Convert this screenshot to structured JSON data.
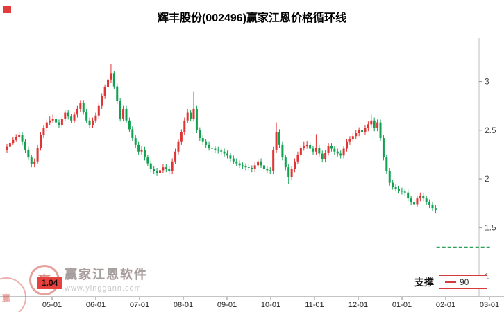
{
  "colors": {
    "up": "#e03434",
    "down": "#12a150",
    "accent_red": "#e23b3b",
    "axis": "#8a8a8a",
    "support_line": "#2aa05a"
  },
  "watermark": {
    "brand": "赢家江恩软件",
    "url": "www.yinggann.com",
    "logo_char": "赢",
    "stamp_char": "赢"
  },
  "chart_data": {
    "type": "candlestick",
    "title": "辉丰股份(002496)赢家江恩价格循环线",
    "symbol": "002496",
    "stock_name": "辉丰股份",
    "x_tick_labels": [
      "05-01",
      "06-01",
      "07-01",
      "08-01",
      "09-01",
      "10-01",
      "11-01",
      "12-01",
      "01-01",
      "02-01",
      "03-01"
    ],
    "y_tick_labels": [
      "3",
      "2.5",
      "2",
      "1.5",
      "1"
    ],
    "y_tick_values": [
      3,
      2.5,
      2,
      1.5,
      1
    ],
    "ylim": [
      0.79,
      3.41
    ],
    "grid": false,
    "legend_position": "bottom-right",
    "up_color": "#e03434",
    "down_color": "#12a150",
    "support_level_label": "1.04",
    "legend": {
      "label": "支撑",
      "value": "90",
      "color": "#d43c3c"
    },
    "support_dash_line": {
      "price": 1.3,
      "x_start_frac": 0.866,
      "x_end_frac": 0.975,
      "color": "#2aa05a",
      "style": "dashed"
    },
    "candles_ohlc": [
      [
        2.3,
        2.36,
        2.27,
        2.33
      ],
      [
        2.33,
        2.4,
        2.31,
        2.37
      ],
      [
        2.37,
        2.43,
        2.35,
        2.4
      ],
      [
        2.4,
        2.46,
        2.38,
        2.43
      ],
      [
        2.43,
        2.49,
        2.41,
        2.45
      ],
      [
        2.45,
        2.48,
        2.35,
        2.38
      ],
      [
        2.38,
        2.41,
        2.27,
        2.3
      ],
      [
        2.3,
        2.33,
        2.19,
        2.22
      ],
      [
        2.22,
        2.25,
        2.12,
        2.15
      ],
      [
        2.15,
        2.21,
        2.12,
        2.18
      ],
      [
        2.18,
        2.35,
        2.15,
        2.32
      ],
      [
        2.32,
        2.48,
        2.29,
        2.45
      ],
      [
        2.45,
        2.55,
        2.42,
        2.52
      ],
      [
        2.52,
        2.61,
        2.49,
        2.58
      ],
      [
        2.58,
        2.64,
        2.55,
        2.6
      ],
      [
        2.6,
        2.66,
        2.57,
        2.62
      ],
      [
        2.62,
        2.65,
        2.55,
        2.58
      ],
      [
        2.58,
        2.61,
        2.52,
        2.55
      ],
      [
        2.55,
        2.65,
        2.52,
        2.62
      ],
      [
        2.62,
        2.71,
        2.59,
        2.68
      ],
      [
        2.68,
        2.71,
        2.61,
        2.64
      ],
      [
        2.64,
        2.67,
        2.57,
        2.6
      ],
      [
        2.6,
        2.69,
        2.57,
        2.66
      ],
      [
        2.66,
        2.75,
        2.63,
        2.72
      ],
      [
        2.72,
        2.81,
        2.69,
        2.78
      ],
      [
        2.78,
        2.81,
        2.66,
        2.69
      ],
      [
        2.69,
        2.72,
        2.57,
        2.6
      ],
      [
        2.6,
        2.63,
        2.52,
        2.55
      ],
      [
        2.55,
        2.63,
        2.52,
        2.6
      ],
      [
        2.6,
        2.68,
        2.57,
        2.65
      ],
      [
        2.65,
        2.78,
        2.62,
        2.75
      ],
      [
        2.75,
        2.88,
        2.72,
        2.85
      ],
      [
        2.85,
        2.97,
        2.82,
        2.94
      ],
      [
        2.94,
        3.05,
        2.91,
        3.02
      ],
      [
        3.02,
        3.18,
        2.99,
        3.08
      ],
      [
        3.08,
        3.11,
        2.92,
        2.95
      ],
      [
        2.95,
        2.98,
        2.77,
        2.8
      ],
      [
        2.8,
        2.83,
        2.59,
        2.62
      ],
      [
        2.62,
        2.75,
        2.59,
        2.72
      ],
      [
        2.72,
        2.75,
        2.57,
        2.6
      ],
      [
        2.6,
        2.63,
        2.48,
        2.51
      ],
      [
        2.51,
        2.54,
        2.39,
        2.42
      ],
      [
        2.42,
        2.45,
        2.32,
        2.35
      ],
      [
        2.35,
        2.38,
        2.25,
        2.28
      ],
      [
        2.28,
        2.34,
        2.25,
        2.3
      ],
      [
        2.3,
        2.33,
        2.19,
        2.22
      ],
      [
        2.22,
        2.25,
        2.13,
        2.16
      ],
      [
        2.16,
        2.19,
        2.07,
        2.1
      ],
      [
        2.1,
        2.13,
        2.05,
        2.08
      ],
      [
        2.08,
        2.11,
        2.03,
        2.06
      ],
      [
        2.06,
        2.12,
        2.03,
        2.09
      ],
      [
        2.09,
        2.15,
        2.06,
        2.12
      ],
      [
        2.12,
        2.15,
        2.07,
        2.1
      ],
      [
        2.1,
        2.13,
        2.05,
        2.08
      ],
      [
        2.08,
        2.21,
        2.05,
        2.18
      ],
      [
        2.18,
        2.31,
        2.15,
        2.28
      ],
      [
        2.28,
        2.41,
        2.25,
        2.38
      ],
      [
        2.38,
        2.51,
        2.35,
        2.48
      ],
      [
        2.48,
        2.63,
        2.45,
        2.6
      ],
      [
        2.6,
        2.72,
        2.57,
        2.68
      ],
      [
        2.68,
        2.71,
        2.59,
        2.62
      ],
      [
        2.62,
        2.9,
        2.59,
        2.72
      ],
      [
        2.72,
        2.75,
        2.47,
        2.5
      ],
      [
        2.5,
        2.53,
        2.39,
        2.42
      ],
      [
        2.42,
        2.45,
        2.35,
        2.38
      ],
      [
        2.38,
        2.41,
        2.32,
        2.35
      ],
      [
        2.35,
        2.38,
        2.29,
        2.32
      ],
      [
        2.32,
        2.35,
        2.28,
        2.31
      ],
      [
        2.31,
        2.34,
        2.27,
        2.3
      ],
      [
        2.3,
        2.33,
        2.26,
        2.29
      ],
      [
        2.29,
        2.32,
        2.25,
        2.28
      ],
      [
        2.28,
        2.31,
        2.23,
        2.26
      ],
      [
        2.26,
        2.29,
        2.21,
        2.24
      ],
      [
        2.24,
        2.27,
        2.18,
        2.21
      ],
      [
        2.21,
        2.24,
        2.15,
        2.18
      ],
      [
        2.18,
        2.21,
        2.13,
        2.16
      ],
      [
        2.16,
        2.19,
        2.11,
        2.14
      ],
      [
        2.14,
        2.17,
        2.1,
        2.13
      ],
      [
        2.13,
        2.16,
        2.09,
        2.12
      ],
      [
        2.12,
        2.15,
        2.08,
        2.11
      ],
      [
        2.11,
        2.14,
        2.07,
        2.1
      ],
      [
        2.1,
        2.17,
        2.07,
        2.14
      ],
      [
        2.14,
        2.21,
        2.11,
        2.18
      ],
      [
        2.18,
        2.21,
        2.11,
        2.14
      ],
      [
        2.14,
        2.17,
        2.07,
        2.1
      ],
      [
        2.1,
        2.13,
        2.06,
        2.09
      ],
      [
        2.09,
        2.12,
        2.05,
        2.08
      ],
      [
        2.08,
        2.33,
        2.05,
        2.3
      ],
      [
        2.3,
        2.58,
        2.27,
        2.48
      ],
      [
        2.48,
        2.51,
        2.32,
        2.35
      ],
      [
        2.35,
        2.38,
        2.19,
        2.22
      ],
      [
        2.22,
        2.25,
        2.09,
        2.12
      ],
      [
        2.12,
        2.15,
        1.95,
        2.02
      ],
      [
        2.02,
        2.13,
        1.99,
        2.1
      ],
      [
        2.1,
        2.21,
        2.07,
        2.18
      ],
      [
        2.18,
        2.28,
        2.15,
        2.25
      ],
      [
        2.25,
        2.35,
        2.22,
        2.32
      ],
      [
        2.32,
        2.38,
        2.29,
        2.34
      ],
      [
        2.34,
        2.39,
        2.31,
        2.35
      ],
      [
        2.35,
        2.38,
        2.28,
        2.31
      ],
      [
        2.31,
        2.34,
        2.25,
        2.28
      ],
      [
        2.28,
        2.46,
        2.25,
        2.32
      ],
      [
        2.32,
        2.35,
        2.23,
        2.26
      ],
      [
        2.26,
        2.29,
        2.17,
        2.2
      ],
      [
        2.2,
        2.3,
        2.17,
        2.27
      ],
      [
        2.27,
        2.37,
        2.24,
        2.34
      ],
      [
        2.34,
        2.37,
        2.28,
        2.31
      ],
      [
        2.31,
        2.34,
        2.25,
        2.28
      ],
      [
        2.28,
        2.31,
        2.23,
        2.26
      ],
      [
        2.26,
        2.29,
        2.21,
        2.24
      ],
      [
        2.24,
        2.34,
        2.21,
        2.31
      ],
      [
        2.31,
        2.41,
        2.28,
        2.38
      ],
      [
        2.38,
        2.44,
        2.35,
        2.41
      ],
      [
        2.41,
        2.47,
        2.38,
        2.44
      ],
      [
        2.44,
        2.5,
        2.41,
        2.47
      ],
      [
        2.47,
        2.53,
        2.44,
        2.5
      ],
      [
        2.5,
        2.53,
        2.45,
        2.48
      ],
      [
        2.48,
        2.55,
        2.45,
        2.52
      ],
      [
        2.52,
        2.59,
        2.49,
        2.56
      ],
      [
        2.56,
        2.66,
        2.53,
        2.6
      ],
      [
        2.6,
        2.63,
        2.49,
        2.52
      ],
      [
        2.52,
        2.61,
        2.49,
        2.58
      ],
      [
        2.58,
        2.61,
        2.39,
        2.42
      ],
      [
        2.42,
        2.45,
        2.19,
        2.22
      ],
      [
        2.22,
        2.25,
        2.05,
        2.08
      ],
      [
        2.08,
        2.11,
        1.93,
        1.96
      ],
      [
        1.96,
        1.99,
        1.89,
        1.92
      ],
      [
        1.92,
        1.95,
        1.87,
        1.9
      ],
      [
        1.9,
        1.93,
        1.85,
        1.88
      ],
      [
        1.88,
        1.91,
        1.84,
        1.87
      ],
      [
        1.87,
        1.9,
        1.83,
        1.86
      ],
      [
        1.86,
        1.89,
        1.77,
        1.8
      ],
      [
        1.8,
        1.83,
        1.73,
        1.76
      ],
      [
        1.76,
        1.79,
        1.71,
        1.74
      ],
      [
        1.74,
        1.83,
        1.71,
        1.8
      ],
      [
        1.8,
        1.86,
        1.77,
        1.83
      ],
      [
        1.83,
        1.86,
        1.77,
        1.8
      ],
      [
        1.8,
        1.83,
        1.73,
        1.76
      ],
      [
        1.76,
        1.79,
        1.7,
        1.73
      ],
      [
        1.73,
        1.76,
        1.67,
        1.7
      ],
      [
        1.7,
        1.73,
        1.65,
        1.68
      ]
    ]
  }
}
